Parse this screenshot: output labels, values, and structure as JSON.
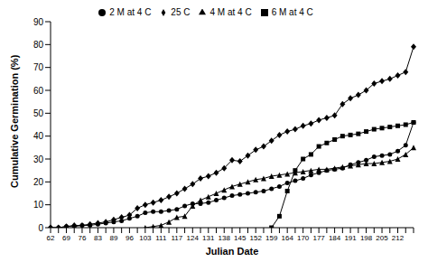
{
  "chart_data": {
    "type": "line",
    "x_label": "Julian Date",
    "y_label": "Cumulative Germination (%)",
    "categories": [
      "62",
      null,
      "69",
      null,
      "76",
      null,
      "83",
      null,
      "89",
      null,
      "96",
      null,
      "103",
      null,
      "111",
      null,
      "117",
      null,
      "124",
      null,
      "131",
      null,
      "138",
      null,
      "145",
      null,
      "152",
      null,
      "159",
      null,
      "164",
      null,
      "170",
      null,
      "177",
      null,
      "184",
      null,
      "191",
      null,
      "198",
      null,
      "205",
      null,
      "212",
      null,
      null
    ],
    "series": [
      {
        "name": "25 C",
        "color": "#000000",
        "marker": "diamond",
        "values": [
          0,
          0,
          0.5,
          1,
          1,
          1.5,
          2,
          2.5,
          3.5,
          4.5,
          5.5,
          8.5,
          10,
          11,
          12,
          13.5,
          15,
          17,
          19,
          21.5,
          22.5,
          24,
          26,
          29.5,
          29,
          31.5,
          34,
          35.5,
          38,
          40.5,
          42,
          43,
          44.5,
          45.5,
          47,
          48,
          49,
          54,
          56.5,
          58,
          60,
          63,
          64,
          65,
          66.5,
          68,
          79
        ]
      },
      {
        "name": "2 M at 4 C",
        "color": "#000000",
        "marker": "circle",
        "values": [
          0,
          0,
          0.5,
          0.5,
          1,
          1,
          1.5,
          2,
          2.5,
          3,
          4,
          5,
          6.5,
          7,
          7,
          7.5,
          8,
          9.5,
          10.5,
          10.5,
          11,
          12,
          13,
          14,
          14.5,
          15,
          15.5,
          16,
          17,
          18,
          19.5,
          20.5,
          21.5,
          23,
          24,
          25,
          25.5,
          26,
          27.5,
          28.5,
          29.5,
          31,
          31.5,
          32,
          33.5,
          36,
          46
        ]
      },
      {
        "name": "4 M at 4 C",
        "color": "#000000",
        "marker": "triangle",
        "values": [
          null,
          null,
          null,
          null,
          null,
          null,
          null,
          null,
          null,
          null,
          null,
          null,
          0,
          0.5,
          1,
          2.5,
          4.5,
          5,
          9.5,
          12,
          13.5,
          15,
          16.5,
          18,
          19,
          20,
          21,
          21.5,
          22.5,
          23,
          23.5,
          24,
          24.5,
          25,
          25.5,
          25.5,
          26,
          26.5,
          27,
          27.5,
          28,
          28,
          28.5,
          29,
          30,
          32,
          35
        ]
      },
      {
        "name": "6 M at 4 C",
        "color": "#000000",
        "marker": "square",
        "values": [
          null,
          null,
          null,
          null,
          null,
          null,
          null,
          null,
          null,
          null,
          null,
          null,
          null,
          null,
          null,
          null,
          null,
          null,
          null,
          null,
          null,
          null,
          null,
          null,
          null,
          null,
          null,
          null,
          0,
          5,
          16,
          25,
          30,
          32,
          35.5,
          37,
          38.5,
          40,
          40.5,
          41,
          42,
          43,
          43.5,
          44,
          44.5,
          45,
          46
        ]
      }
    ],
    "ylim": [
      0,
      90
    ],
    "yticks": [
      0,
      10,
      20,
      30,
      40,
      50,
      60,
      70,
      80,
      90
    ],
    "grid": false,
    "legend": "top"
  }
}
